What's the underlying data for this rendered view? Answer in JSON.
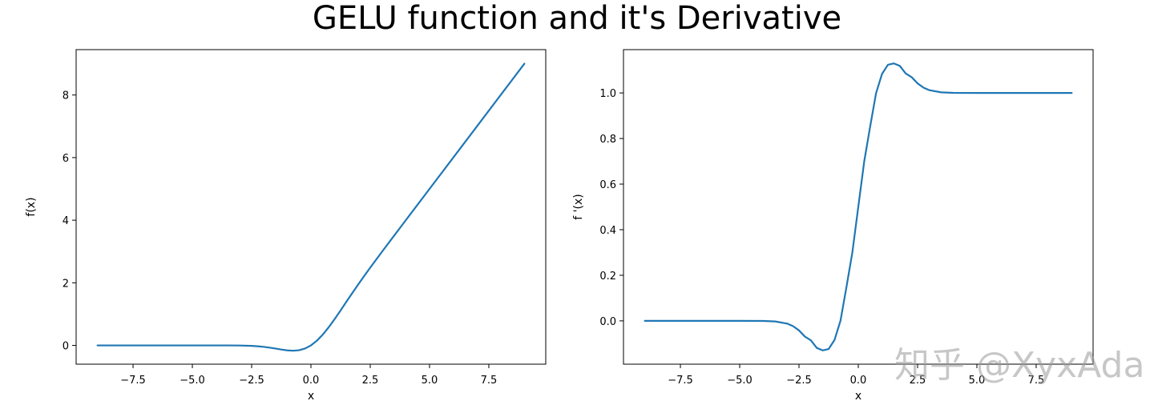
{
  "figure": {
    "title": "GELU function and it's Derivative",
    "watermark": "知乎 @XyxAda"
  },
  "chart_data": [
    {
      "type": "line",
      "title": "",
      "xlabel": "x",
      "ylabel": "f(x)",
      "xlim": [
        -9.9,
        9.9
      ],
      "ylim": [
        -0.6,
        9.45
      ],
      "xticks": [
        -7.5,
        -5.0,
        -2.5,
        0.0,
        2.5,
        5.0,
        7.5
      ],
      "xtick_labels": [
        "−7.5",
        "−5.0",
        "−2.5",
        "0.0",
        "2.5",
        "5.0",
        "7.5"
      ],
      "yticks": [
        0,
        2,
        4,
        6,
        8
      ],
      "ytick_labels": [
        "0",
        "2",
        "4",
        "6",
        "8"
      ],
      "grid": false,
      "series": [
        {
          "color": "#1f77b4",
          "x": [
            -9,
            -8,
            -7,
            -6,
            -5,
            -4,
            -3.5,
            -3,
            -2.5,
            -2.25,
            -2,
            -1.75,
            -1.5,
            -1.25,
            -1,
            -0.75,
            -0.5,
            -0.25,
            0,
            0.25,
            0.5,
            0.75,
            1,
            1.25,
            1.5,
            1.75,
            2,
            2.25,
            2.5,
            3,
            3.5,
            4,
            5,
            6,
            7,
            8,
            9
          ],
          "y": [
            0,
            0,
            0,
            0,
            0,
            -0.0001,
            -0.0008,
            -0.004,
            -0.0155,
            -0.0275,
            -0.0455,
            -0.0702,
            -0.1002,
            -0.132,
            -0.1587,
            -0.17,
            -0.1543,
            -0.1003,
            0,
            0.1497,
            0.3457,
            0.58,
            0.8413,
            1.118,
            1.3998,
            1.6798,
            1.9545,
            2.2225,
            2.4845,
            2.996,
            3.4992,
            3.9999,
            5.0,
            6.0,
            7.0,
            8.0,
            9.0
          ]
        }
      ]
    },
    {
      "type": "line",
      "title": "",
      "xlabel": "x",
      "ylabel": "f '(x)",
      "xlim": [
        -9.9,
        9.9
      ],
      "ylim": [
        -0.19,
        1.19
      ],
      "xticks": [
        -7.5,
        -5.0,
        -2.5,
        0.0,
        2.5,
        5.0,
        7.5
      ],
      "xtick_labels": [
        "−7.5",
        "−5.0",
        "−2.5",
        "0.0",
        "2.5",
        "5.0",
        "7.5"
      ],
      "yticks": [
        0.0,
        0.2,
        0.4,
        0.6,
        0.8,
        1.0
      ],
      "ytick_labels": [
        "0.0",
        "0.2",
        "0.4",
        "0.6",
        "0.8",
        "1.0"
      ],
      "grid": false,
      "series": [
        {
          "color": "#1f77b4",
          "x": [
            -9,
            -8,
            -7,
            -6,
            -5,
            -4,
            -3.5,
            -3,
            -2.75,
            -2.5,
            -2.25,
            -2,
            -1.75,
            -1.5,
            -1.25,
            -1,
            -0.75,
            -0.5,
            -0.25,
            0,
            0.25,
            0.5,
            0.75,
            1,
            1.25,
            1.5,
            1.75,
            2,
            2.25,
            2.5,
            2.75,
            3,
            3.5,
            4,
            5,
            6,
            7,
            8,
            9
          ],
          "y": [
            0,
            0,
            0,
            0,
            0,
            -0.0005,
            -0.0026,
            -0.0119,
            -0.0232,
            -0.0419,
            -0.0691,
            -0.0852,
            -0.1187,
            -0.1295,
            -0.1236,
            -0.0833,
            0.0006,
            0.1479,
            0.3007,
            0.5,
            0.6993,
            0.8521,
            0.9994,
            1.0833,
            1.1236,
            1.1295,
            1.1187,
            1.0852,
            1.0691,
            1.0419,
            1.0232,
            1.0119,
            1.0026,
            1.0005,
            1.0,
            1.0,
            1.0,
            1.0,
            1.0
          ]
        }
      ]
    }
  ]
}
